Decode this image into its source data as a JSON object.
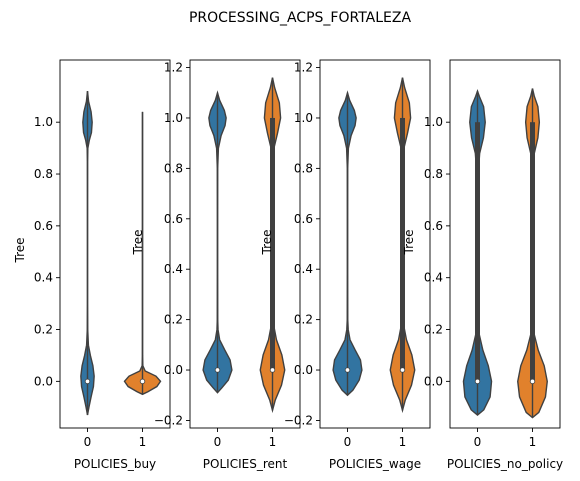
{
  "chart_data": {
    "type": "violin",
    "title": "PROCESSING_ACPS_FORTALEZA",
    "colors": {
      "0": "#3274a1",
      "1": "#e1812c"
    },
    "panels": [
      {
        "xlabel": "POLICIES_buy",
        "ylabel": "Tree",
        "ylim": [
          -0.18,
          1.24
        ],
        "yticks": [
          0.0,
          0.2,
          0.4,
          0.6,
          0.8,
          1.0
        ],
        "ytick_labels": [
          "0.0",
          "0.2",
          "0.4",
          "0.6",
          "0.8",
          "1.0"
        ],
        "categories": [
          "0",
          "1"
        ],
        "violins": [
          {
            "category": "0",
            "min": -0.13,
            "max": 1.12,
            "q1": 0.0,
            "median": 0.0,
            "q3": 0.0,
            "profile": [
              [
                -0.13,
                0.0
              ],
              [
                -0.1,
                0.08
              ],
              [
                -0.06,
                0.2
              ],
              [
                -0.02,
                0.33
              ],
              [
                0.02,
                0.37
              ],
              [
                0.06,
                0.3
              ],
              [
                0.1,
                0.16
              ],
              [
                0.14,
                0.05
              ],
              [
                0.2,
                0.012
              ],
              [
                0.3,
                0.004
              ],
              [
                0.5,
                0.003
              ],
              [
                0.7,
                0.003
              ],
              [
                0.85,
                0.005
              ],
              [
                0.9,
                0.02
              ],
              [
                0.93,
                0.1
              ],
              [
                0.96,
                0.22
              ],
              [
                1.0,
                0.26
              ],
              [
                1.04,
                0.2
              ],
              [
                1.08,
                0.06
              ],
              [
                1.12,
                0.0
              ]
            ]
          },
          {
            "category": "1",
            "min": -0.05,
            "max": 1.04,
            "q1": 0.0,
            "median": 0.0,
            "q3": 0.0,
            "profile": [
              [
                -0.05,
                0.0
              ],
              [
                -0.04,
                0.3
              ],
              [
                -0.02,
                0.8
              ],
              [
                0.0,
                1.0
              ],
              [
                0.02,
                0.75
              ],
              [
                0.04,
                0.15
              ],
              [
                0.06,
                0.02
              ],
              [
                0.1,
                0.005
              ],
              [
                0.4,
                0.004
              ],
              [
                0.8,
                0.004
              ],
              [
                1.0,
                0.003
              ],
              [
                1.04,
                0.0
              ]
            ]
          }
        ]
      },
      {
        "xlabel": "POLICIES_rent",
        "ylabel": "Tree",
        "ylim": [
          -0.23,
          1.23
        ],
        "yticks": [
          -0.2,
          0.0,
          0.2,
          0.4,
          0.6,
          0.8,
          1.0,
          1.2
        ],
        "ytick_labels": [
          "−0.2",
          "0.0",
          "0.2",
          "0.4",
          "0.6",
          "0.8",
          "1.0",
          "1.2"
        ],
        "categories": [
          "0",
          "1"
        ],
        "violins": [
          {
            "category": "0",
            "min": -0.09,
            "max": 1.1,
            "q1": 0.0,
            "median": 0.0,
            "q3": 0.0,
            "profile": [
              [
                -0.09,
                0.0
              ],
              [
                -0.07,
                0.25
              ],
              [
                -0.04,
                0.6
              ],
              [
                0.0,
                0.8
              ],
              [
                0.04,
                0.7
              ],
              [
                0.08,
                0.4
              ],
              [
                0.12,
                0.12
              ],
              [
                0.16,
                0.03
              ],
              [
                0.2,
                0.012
              ],
              [
                0.4,
                0.006
              ],
              [
                0.6,
                0.006
              ],
              [
                0.8,
                0.01
              ],
              [
                0.88,
                0.05
              ],
              [
                0.93,
                0.2
              ],
              [
                0.97,
                0.42
              ],
              [
                1.0,
                0.48
              ],
              [
                1.03,
                0.38
              ],
              [
                1.07,
                0.12
              ],
              [
                1.1,
                0.0
              ]
            ]
          },
          {
            "category": "1",
            "min": -0.16,
            "max": 1.16,
            "q1": 0.0,
            "median": 0.0,
            "q3": 1.0,
            "profile": [
              [
                -0.16,
                0.0
              ],
              [
                -0.12,
                0.15
              ],
              [
                -0.06,
                0.5
              ],
              [
                0.0,
                0.68
              ],
              [
                0.06,
                0.52
              ],
              [
                0.12,
                0.22
              ],
              [
                0.18,
                0.06
              ],
              [
                0.25,
                0.02
              ],
              [
                0.5,
                0.015
              ],
              [
                0.8,
                0.02
              ],
              [
                0.88,
                0.08
              ],
              [
                0.94,
                0.28
              ],
              [
                1.0,
                0.45
              ],
              [
                1.06,
                0.38
              ],
              [
                1.12,
                0.12
              ],
              [
                1.16,
                0.0
              ]
            ]
          }
        ]
      },
      {
        "xlabel": "POLICIES_wage",
        "ylabel": "Tree",
        "ylim": [
          -0.23,
          1.23
        ],
        "yticks": [
          -0.2,
          0.0,
          0.2,
          0.4,
          0.6,
          0.8,
          1.0,
          1.2
        ],
        "ytick_labels": [
          "−0.2",
          "0.0",
          "0.2",
          "0.4",
          "0.6",
          "0.8",
          "1.0",
          "1.2"
        ],
        "categories": [
          "0",
          "1"
        ],
        "violins": [
          {
            "category": "0",
            "min": -0.1,
            "max": 1.1,
            "q1": 0.0,
            "median": 0.0,
            "q3": 0.0,
            "profile": [
              [
                -0.1,
                0.0
              ],
              [
                -0.08,
                0.3
              ],
              [
                -0.04,
                0.65
              ],
              [
                0.0,
                0.8
              ],
              [
                0.04,
                0.72
              ],
              [
                0.08,
                0.42
              ],
              [
                0.12,
                0.14
              ],
              [
                0.16,
                0.04
              ],
              [
                0.2,
                0.014
              ],
              [
                0.4,
                0.007
              ],
              [
                0.6,
                0.007
              ],
              [
                0.8,
                0.01
              ],
              [
                0.88,
                0.05
              ],
              [
                0.93,
                0.2
              ],
              [
                0.97,
                0.42
              ],
              [
                1.0,
                0.48
              ],
              [
                1.03,
                0.38
              ],
              [
                1.07,
                0.12
              ],
              [
                1.1,
                0.0
              ]
            ]
          },
          {
            "category": "1",
            "min": -0.16,
            "max": 1.16,
            "q1": 0.0,
            "median": 0.0,
            "q3": 1.0,
            "profile": [
              [
                -0.16,
                0.0
              ],
              [
                -0.12,
                0.15
              ],
              [
                -0.06,
                0.5
              ],
              [
                0.0,
                0.68
              ],
              [
                0.06,
                0.52
              ],
              [
                0.12,
                0.22
              ],
              [
                0.18,
                0.06
              ],
              [
                0.25,
                0.02
              ],
              [
                0.5,
                0.015
              ],
              [
                0.8,
                0.02
              ],
              [
                0.88,
                0.08
              ],
              [
                0.94,
                0.28
              ],
              [
                1.0,
                0.45
              ],
              [
                1.06,
                0.38
              ],
              [
                1.12,
                0.12
              ],
              [
                1.16,
                0.0
              ]
            ]
          }
        ]
      },
      {
        "xlabel": "POLICIES_no_policy",
        "ylabel": "Tree",
        "ylim": [
          -0.18,
          1.24
        ],
        "yticks": [
          0.0,
          0.2,
          0.4,
          0.6,
          0.8,
          1.0
        ],
        "ytick_labels": [
          "0.0",
          "0.2",
          "0.4",
          "0.6",
          "0.8",
          "1.0"
        ],
        "categories": [
          "0",
          "1"
        ],
        "violins": [
          {
            "category": "0",
            "min": -0.13,
            "max": 1.12,
            "q1": 0.0,
            "median": 0.0,
            "q3": 1.0,
            "profile": [
              [
                -0.13,
                0.0
              ],
              [
                -0.11,
                0.35
              ],
              [
                -0.06,
                0.7
              ],
              [
                0.0,
                0.78
              ],
              [
                0.06,
                0.6
              ],
              [
                0.12,
                0.3
              ],
              [
                0.18,
                0.1
              ],
              [
                0.25,
                0.04
              ],
              [
                0.5,
                0.025
              ],
              [
                0.8,
                0.04
              ],
              [
                0.88,
                0.12
              ],
              [
                0.94,
                0.33
              ],
              [
                1.0,
                0.43
              ],
              [
                1.06,
                0.34
              ],
              [
                1.1,
                0.1
              ],
              [
                1.12,
                0.0
              ]
            ]
          },
          {
            "category": "1",
            "min": -0.14,
            "max": 1.13,
            "q1": 0.0,
            "median": 0.0,
            "q3": 1.0,
            "profile": [
              [
                -0.14,
                0.0
              ],
              [
                -0.12,
                0.35
              ],
              [
                -0.06,
                0.72
              ],
              [
                0.0,
                0.82
              ],
              [
                0.06,
                0.65
              ],
              [
                0.12,
                0.32
              ],
              [
                0.18,
                0.1
              ],
              [
                0.25,
                0.04
              ],
              [
                0.5,
                0.02
              ],
              [
                0.8,
                0.03
              ],
              [
                0.88,
                0.1
              ],
              [
                0.94,
                0.3
              ],
              [
                1.0,
                0.38
              ],
              [
                1.06,
                0.3
              ],
              [
                1.1,
                0.1
              ],
              [
                1.13,
                0.0
              ]
            ]
          }
        ]
      }
    ]
  }
}
